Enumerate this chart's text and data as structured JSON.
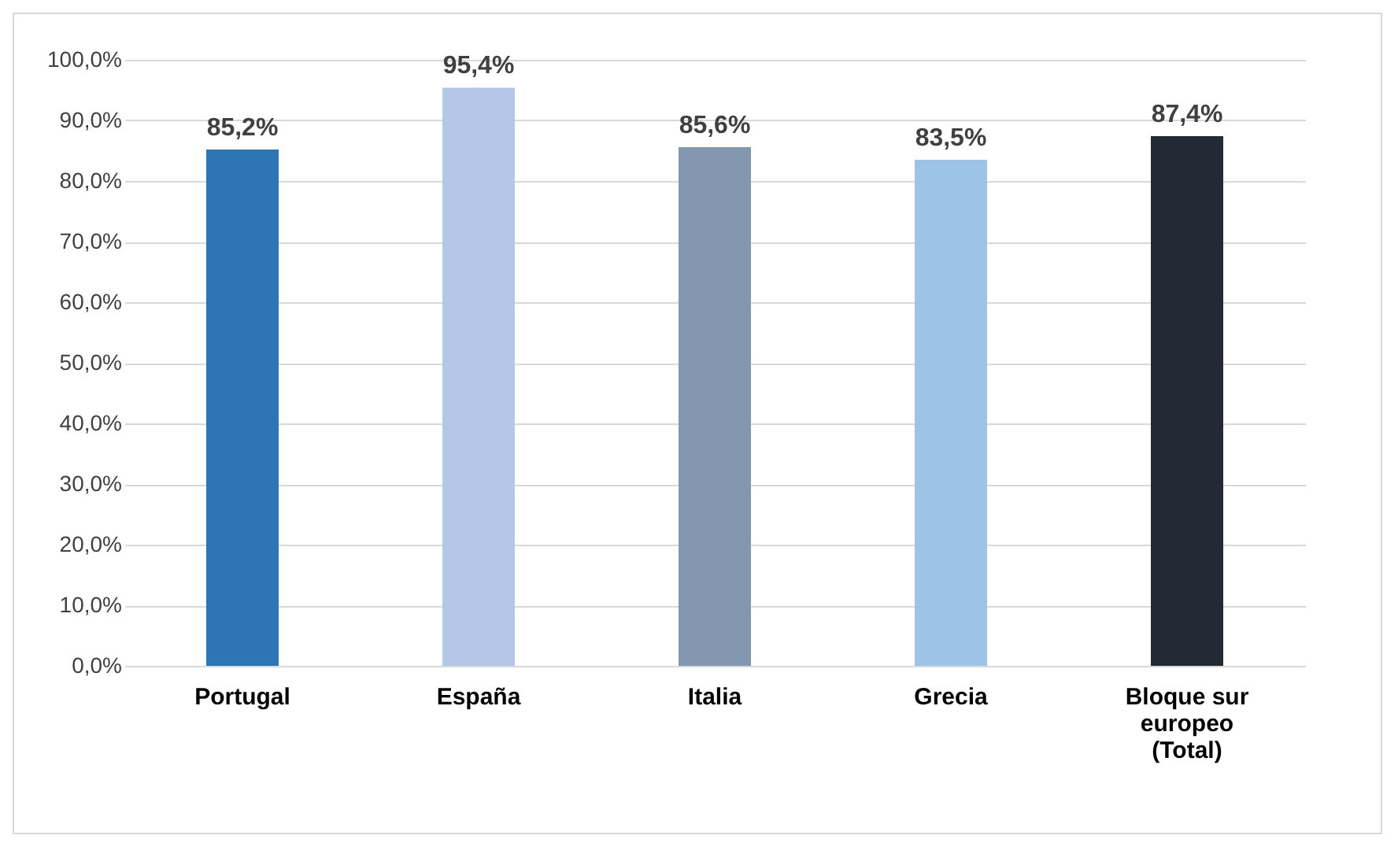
{
  "chart_data": {
    "type": "bar",
    "categories": [
      "Portugal",
      "España",
      "Italia",
      "Grecia",
      "Bloque sur europeo (Total)"
    ],
    "values": [
      85.2,
      95.4,
      85.6,
      83.5,
      87.4
    ],
    "colors": [
      "#2e75b6",
      "#b4c7e7",
      "#8497b0",
      "#9dc3e6",
      "#222a35"
    ],
    "value_labels": [
      "85,2%",
      "95,4%",
      "85,6%",
      "83,5%",
      "87,4%"
    ],
    "ylim": [
      0,
      100
    ],
    "yticks": [
      {
        "value": 0,
        "label": "0,0%"
      },
      {
        "value": 10,
        "label": "10,0%"
      },
      {
        "value": 20,
        "label": "20,0%"
      },
      {
        "value": 30,
        "label": "30,0%"
      },
      {
        "value": 40,
        "label": "40,0%"
      },
      {
        "value": 50,
        "label": "50,0%"
      },
      {
        "value": 60,
        "label": "60,0%"
      },
      {
        "value": 70,
        "label": "70,0%"
      },
      {
        "value": 80,
        "label": "80,0%"
      },
      {
        "value": 90,
        "label": "90,0%"
      },
      {
        "value": 100,
        "label": "100,0%"
      }
    ],
    "grid": "y"
  }
}
